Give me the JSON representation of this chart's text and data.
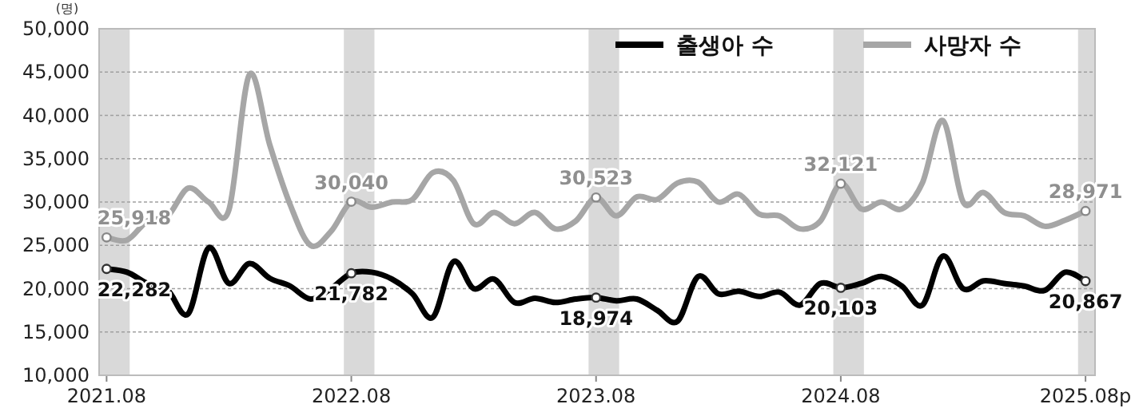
{
  "chart_data": {
    "type": "line",
    "ylabel": "(명)",
    "x": [
      "2021-08",
      "2021-09",
      "2021-10",
      "2021-11",
      "2021-12",
      "2022-01",
      "2022-02",
      "2022-03",
      "2022-04",
      "2022-05",
      "2022-06",
      "2022-07",
      "2022-08",
      "2022-09",
      "2022-10",
      "2022-11",
      "2022-12",
      "2023-01",
      "2023-02",
      "2023-03",
      "2023-04",
      "2023-05",
      "2023-06",
      "2023-07",
      "2023-08",
      "2023-09",
      "2023-10",
      "2023-11",
      "2023-12",
      "2024-01",
      "2024-02",
      "2024-03",
      "2024-04",
      "2024-05",
      "2024-06",
      "2024-07",
      "2024-08",
      "2024-09",
      "2024-10",
      "2024-11",
      "2024-12",
      "2025-01",
      "2025-02",
      "2025-03",
      "2025-04",
      "2025-05",
      "2025-06",
      "2025-07",
      "2025-08"
    ],
    "series": [
      {
        "name": "출생아 수",
        "color": "#000000",
        "values": [
          22282,
          21900,
          20600,
          19800,
          17100,
          24700,
          20600,
          22900,
          21200,
          20300,
          18800,
          20000,
          21782,
          21900,
          21100,
          19400,
          16700,
          23100,
          20000,
          21100,
          18400,
          18900,
          18400,
          18800,
          18974,
          18600,
          18800,
          17500,
          16250,
          21400,
          19400,
          19700,
          19100,
          19600,
          18100,
          20600,
          20103,
          20600,
          21400,
          20300,
          18100,
          23750,
          20000,
          20900,
          20600,
          20300,
          19800,
          21900,
          20867
        ],
        "value_labels": [
          "22,282",
          null,
          null,
          null,
          null,
          null,
          null,
          null,
          null,
          null,
          null,
          null,
          "21,782",
          null,
          null,
          null,
          null,
          null,
          null,
          null,
          null,
          null,
          null,
          null,
          "18,974",
          null,
          null,
          null,
          null,
          null,
          null,
          null,
          null,
          null,
          null,
          null,
          "20,103",
          null,
          null,
          null,
          null,
          null,
          null,
          null,
          null,
          null,
          null,
          null,
          "20,867"
        ]
      },
      {
        "name": "사망자 수",
        "color": "#a6a6a6",
        "values": [
          25918,
          25600,
          27800,
          28400,
          31600,
          30000,
          29100,
          44700,
          36600,
          29700,
          25000,
          26600,
          30040,
          29400,
          30000,
          30300,
          33400,
          32500,
          27500,
          28800,
          27500,
          28800,
          26900,
          27800,
          30523,
          28400,
          30600,
          30300,
          32200,
          32300,
          30000,
          30900,
          28600,
          28400,
          26900,
          27800,
          32121,
          29200,
          30000,
          29200,
          32200,
          39400,
          30000,
          31100,
          28800,
          28400,
          27200,
          27900,
          28971
        ],
        "value_labels": [
          "25,918",
          null,
          null,
          null,
          null,
          null,
          null,
          null,
          null,
          null,
          null,
          null,
          "30,040",
          null,
          null,
          null,
          null,
          null,
          null,
          null,
          null,
          null,
          null,
          null,
          "30,523",
          null,
          null,
          null,
          null,
          null,
          null,
          null,
          null,
          null,
          null,
          null,
          "32,121",
          null,
          null,
          null,
          null,
          null,
          null,
          null,
          null,
          null,
          null,
          null,
          "28,971"
        ]
      }
    ],
    "xlim": [
      "2021-07-20",
      "2025-08-15"
    ],
    "xticks": [
      {
        "value": "2021-08",
        "label": "2021.08"
      },
      {
        "value": "2022-08",
        "label": "2022.08"
      },
      {
        "value": "2023-08",
        "label": "2023.08"
      },
      {
        "value": "2024-08",
        "label": "2024.08"
      },
      {
        "value": "2025-08",
        "label": "2025.08p"
      }
    ],
    "ylim": [
      10000,
      50000
    ],
    "yticks": [
      {
        "value": 10000,
        "label": "10,000"
      },
      {
        "value": 15000,
        "label": "15,000"
      },
      {
        "value": 20000,
        "label": "20,000"
      },
      {
        "value": 25000,
        "label": "25,000"
      },
      {
        "value": 30000,
        "label": "30,000"
      },
      {
        "value": 35000,
        "label": "35,000"
      },
      {
        "value": 40000,
        "label": "40,000"
      },
      {
        "value": 45000,
        "label": "45,000"
      },
      {
        "value": 50000,
        "label": "50,000"
      }
    ],
    "bands": [
      {
        "axis": "x",
        "from": "2021-07-20",
        "to": "2021-09-05",
        "color": "#d9d9d9"
      },
      {
        "axis": "x",
        "from": "2022-07-20",
        "to": "2022-09-05",
        "color": "#d9d9d9"
      },
      {
        "axis": "x",
        "from": "2023-07-20",
        "to": "2023-09-05",
        "color": "#d9d9d9"
      },
      {
        "axis": "x",
        "from": "2024-07-20",
        "to": "2024-09-05",
        "color": "#d9d9d9"
      },
      {
        "axis": "x",
        "from": "2025-07-20",
        "to": "2025-08-15",
        "color": "#d9d9d9"
      }
    ],
    "grid": "y",
    "legend": "top right",
    "line_style": "solid"
  }
}
